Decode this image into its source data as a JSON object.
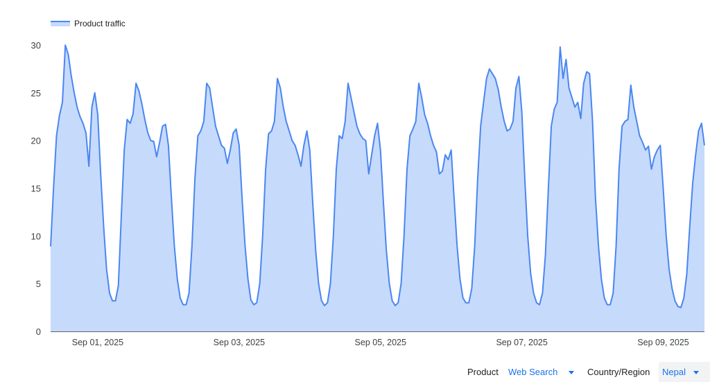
{
  "legend": {
    "label": "Product traffic"
  },
  "controls": {
    "product_label": "Product",
    "product_value": "Web Search",
    "region_label": "Country/Region",
    "region_value": "Nepal"
  },
  "colors": {
    "line": "#4a86f0",
    "fill": "#c6dafc",
    "accent": "#1a73e8"
  },
  "chart_data": {
    "type": "area",
    "series": [
      {
        "name": "Product traffic"
      }
    ],
    "ylim": [
      0,
      30
    ],
    "yticks": [
      0,
      5,
      10,
      15,
      20,
      25,
      30
    ],
    "x_range": [
      "2025-08-31T08:00",
      "2025-09-09T14:00"
    ],
    "xticks": [
      {
        "date": "2025-09-01",
        "label": "Sep 01, 2025"
      },
      {
        "date": "2025-09-03",
        "label": "Sep 03, 2025"
      },
      {
        "date": "2025-09-05",
        "label": "Sep 05, 2025"
      },
      {
        "date": "2025-09-07",
        "label": "Sep 07, 2025"
      },
      {
        "date": "2025-09-09",
        "label": "Sep 09, 2025"
      }
    ],
    "grid": false,
    "legend_position": "top-left",
    "hourly": [
      {
        "date": "2025-08-31",
        "values": [
          null,
          null,
          null,
          null,
          null,
          null,
          null,
          null,
          8.9,
          15,
          20.5,
          22.6,
          24,
          30,
          29,
          26.8,
          25,
          23.5,
          22.5,
          21.8,
          20.8,
          17.3,
          23.5,
          25
        ]
      },
      {
        "date": "2025-09-01",
        "values": [
          22.7,
          16.5,
          11,
          6.5,
          4,
          3.2,
          3.2,
          4.8,
          12,
          19,
          22.2,
          21.8,
          22.8,
          26,
          25.2,
          23.8,
          22.2,
          20.8,
          20,
          19.9,
          18.3,
          19.8,
          21.5,
          21.7
        ]
      },
      {
        "date": "2025-09-02",
        "values": [
          19.5,
          14,
          9,
          5.5,
          3.5,
          2.8,
          2.8,
          4,
          9,
          16,
          20.5,
          21,
          22,
          26,
          25.5,
          23.5,
          21.5,
          20.5,
          19.5,
          19.2,
          17.6,
          19,
          20.8,
          21.2
        ]
      },
      {
        "date": "2025-09-03",
        "values": [
          19.5,
          14,
          9,
          5.5,
          3.3,
          2.8,
          3,
          5,
          10,
          17,
          20.7,
          21,
          22,
          26.5,
          25.5,
          23.5,
          22,
          21,
          20,
          19.5,
          18.5,
          17.3,
          19.5,
          21
        ]
      },
      {
        "date": "2025-09-04",
        "values": [
          19,
          13.5,
          8.5,
          5,
          3.2,
          2.7,
          3,
          5,
          10,
          17,
          20.5,
          20.2,
          22,
          26,
          24.5,
          23,
          21.5,
          20.7,
          20.2,
          20,
          16.5,
          18.5,
          20.5,
          21.8
        ]
      },
      {
        "date": "2025-09-05",
        "values": [
          19,
          13.5,
          8.5,
          5,
          3.2,
          2.7,
          3,
          5,
          10,
          17,
          20.5,
          21.2,
          22,
          26,
          24.5,
          22.7,
          21.8,
          20.5,
          19.5,
          18.8,
          16.5,
          16.8,
          18.5,
          18
        ]
      },
      {
        "date": "2025-09-06",
        "values": [
          19,
          14,
          9,
          5.5,
          3.5,
          3,
          3,
          4.5,
          9,
          16,
          21.5,
          24,
          26.5,
          27.5,
          27,
          26.5,
          25.3,
          23.5,
          22,
          21,
          21.2,
          22,
          25.5,
          26.7
        ]
      },
      {
        "date": "2025-09-07",
        "values": [
          23,
          16,
          10,
          6,
          4,
          3,
          2.8,
          4,
          8,
          15,
          21.5,
          23.3,
          24,
          29.8,
          26.5,
          28.5,
          25.5,
          24.5,
          23.5,
          24,
          22.3,
          26,
          27.2,
          27
        ]
      },
      {
        "date": "2025-09-08",
        "values": [
          22,
          14,
          9,
          5.5,
          3.5,
          2.8,
          2.8,
          4,
          9,
          17,
          21.5,
          22,
          22.2,
          25.8,
          23.5,
          22,
          20.5,
          19.8,
          19,
          19.4,
          17,
          18.3,
          19,
          19.5
        ]
      },
      {
        "date": "2025-09-09",
        "values": [
          15,
          10,
          6.5,
          4.5,
          3.2,
          2.6,
          2.5,
          3.5,
          6,
          11,
          15.5,
          18.5,
          21,
          21.8,
          19.5
        ]
      }
    ]
  }
}
